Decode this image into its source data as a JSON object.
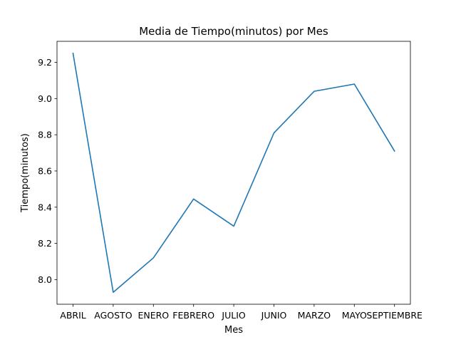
{
  "chart_data": {
    "type": "line",
    "title": "Media de Tiempo(minutos) por Mes",
    "xlabel": "Mes",
    "ylabel": "Tiempo(minutos)",
    "categories": [
      "ABRIL",
      "AGOSTO",
      "ENERO",
      "FEBRERO",
      "JULIO",
      "JUNIO",
      "MARZO",
      "MAYO",
      "SEPTIEMBRE"
    ],
    "series": [
      {
        "values": [
          9.25,
          7.93,
          8.12,
          8.445,
          8.295,
          8.81,
          9.04,
          9.08,
          8.71
        ]
      }
    ],
    "yticks": [
      8.0,
      8.2,
      8.4,
      8.6,
      8.8,
      9.0,
      9.2
    ],
    "ylim": [
      7.864,
      9.316
    ],
    "grid": false,
    "line_color": "#1f77b4"
  }
}
